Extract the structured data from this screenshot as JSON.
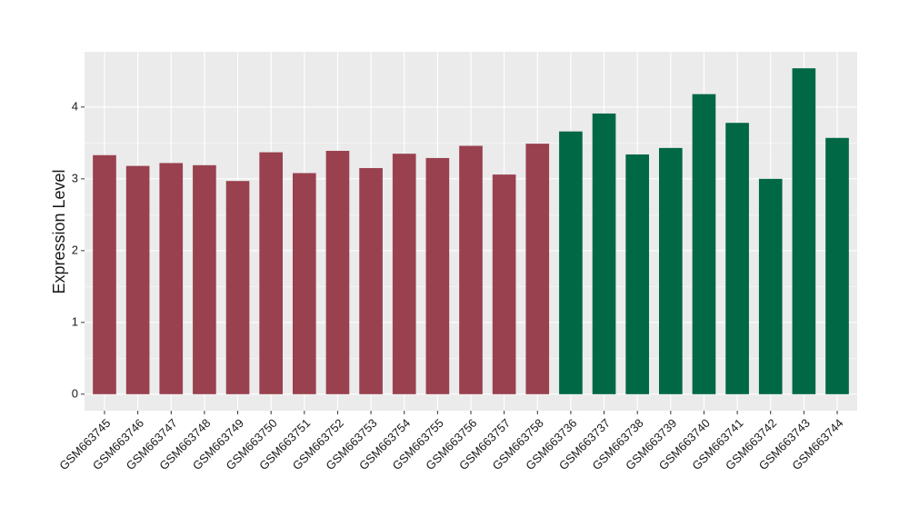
{
  "chart_data": {
    "type": "bar",
    "y_label": "Expression Level",
    "categories": [
      "GSM663745",
      "GSM663746",
      "GSM663747",
      "GSM663748",
      "GSM663749",
      "GSM663750",
      "GSM663751",
      "GSM663752",
      "GSM663753",
      "GSM663754",
      "GSM663755",
      "GSM663756",
      "GSM663757",
      "GSM663758",
      "GSM663736",
      "GSM663737",
      "GSM663738",
      "GSM663739",
      "GSM663740",
      "GSM663741",
      "GSM663742",
      "GSM663743",
      "GSM663744"
    ],
    "values": [
      3.33,
      3.18,
      3.22,
      3.19,
      2.97,
      3.37,
      3.08,
      3.39,
      3.15,
      3.35,
      3.29,
      3.46,
      3.06,
      3.49,
      3.66,
      3.91,
      3.34,
      3.43,
      4.18,
      3.78,
      3.0,
      4.54,
      3.57
    ],
    "colors": [
      "#99414f",
      "#99414f",
      "#99414f",
      "#99414f",
      "#99414f",
      "#99414f",
      "#99414f",
      "#99414f",
      "#99414f",
      "#99414f",
      "#99414f",
      "#99414f",
      "#99414f",
      "#99414f",
      "#006845",
      "#006845",
      "#006845",
      "#006845",
      "#006845",
      "#006845",
      "#006845",
      "#006845",
      "#006845"
    ],
    "ylim": [
      -0.23,
      4.77
    ],
    "yticks": [
      0,
      1,
      2,
      3,
      4
    ],
    "grid": true
  }
}
